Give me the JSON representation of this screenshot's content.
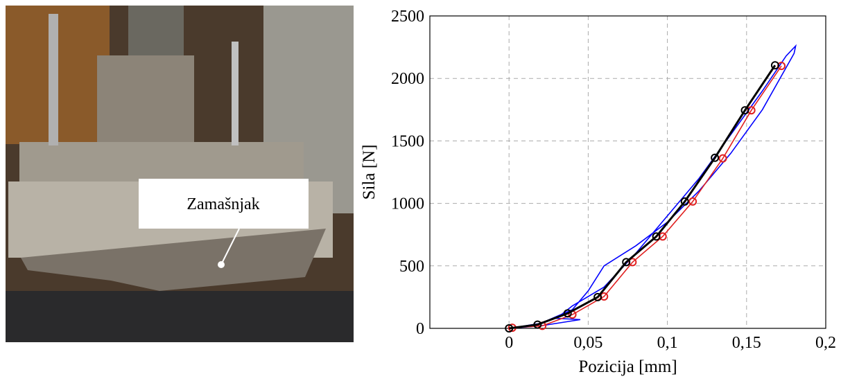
{
  "photo": {
    "label": "Zamašnjak"
  },
  "chart_data": {
    "type": "line",
    "x_label": "Pozicija [mm]",
    "y_label": "Sila [N]",
    "xlim": [
      -0.05,
      0.2
    ],
    "ylim": [
      0,
      2500
    ],
    "xticks": [
      0,
      {
        "value": 0.05,
        "label": "0,05"
      },
      {
        "value": 0.1,
        "label": "0,1"
      },
      {
        "value": 0.15,
        "label": "0,15"
      },
      {
        "value": 0.2,
        "label": "0,2"
      }
    ],
    "yticks": [
      0,
      500,
      1000,
      1500,
      2000,
      2500
    ],
    "grid": true,
    "series": [
      {
        "color": "#0000ff",
        "marker": false,
        "x": [
          0,
          0.02,
          0.04,
          0.05,
          0.06,
          0.08,
          0.1,
          0.12,
          0.14,
          0.16,
          0.18,
          0.181,
          0.175,
          0.16,
          0.14,
          0.12,
          0.1,
          0.08,
          0.06,
          0.04,
          0.03,
          0.045,
          0.02,
          0
        ],
        "values": [
          0,
          40,
          150,
          300,
          500,
          660,
          850,
          1100,
          1400,
          1750,
          2200,
          2260,
          2180,
          1900,
          1550,
          1200,
          900,
          600,
          330,
          180,
          80,
          70,
          20,
          0
        ]
      },
      {
        "color": "#e02020",
        "marker": true,
        "x": [
          0.002,
          0.021,
          0.04,
          0.06,
          0.078,
          0.097,
          0.116,
          0.135,
          0.153,
          0.172
        ],
        "values": [
          5,
          20,
          110,
          255,
          530,
          735,
          1015,
          1360,
          1745,
          2100
        ]
      },
      {
        "color": "#000000",
        "marker": true,
        "x": [
          0,
          0.018,
          0.037,
          0.056,
          0.074,
          0.093,
          0.111,
          0.13,
          0.149,
          0.168
        ],
        "values": [
          0,
          30,
          120,
          250,
          530,
          735,
          1015,
          1365,
          1745,
          2105
        ]
      }
    ]
  }
}
